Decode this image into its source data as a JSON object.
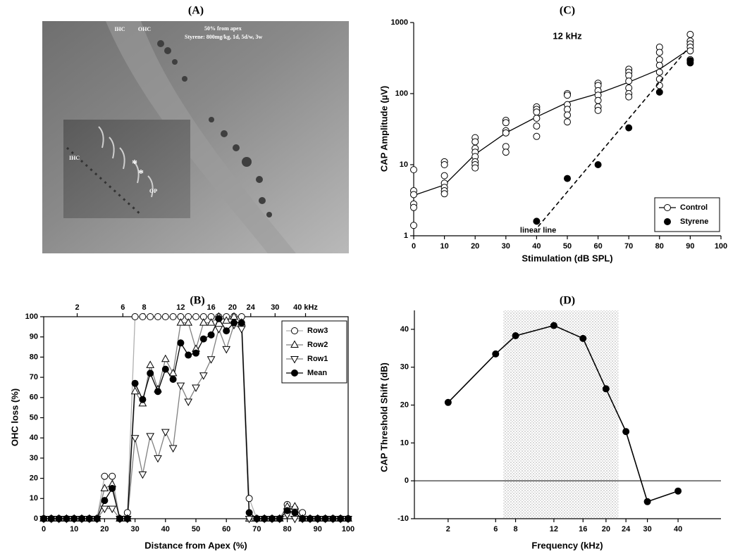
{
  "photo": {
    "title": "(A)",
    "labels": [
      "IHC",
      "OHC",
      "50% from apex",
      "Styrene: 800mg/kg, 1d, 5d/w, 3w",
      "IHC",
      "*",
      "*",
      "OP"
    ]
  },
  "chart_data": [
    {
      "type": "line",
      "title": "(B)",
      "x_label": "Distance from Apex (%)",
      "y_label": "OHC loss (%)",
      "x": [
        0,
        2.5,
        5,
        7.5,
        10,
        12.5,
        15,
        17.5,
        20,
        22.5,
        25,
        27.5,
        30,
        32.5,
        35,
        37.5,
        40,
        42.5,
        45,
        47.5,
        50,
        52.5,
        55,
        57.5,
        60,
        62.5,
        65,
        67.5,
        70,
        72.5,
        75,
        77.5,
        80,
        82.5,
        85,
        87.5,
        90,
        92.5,
        95,
        97.5,
        100
      ],
      "xlim": [
        0,
        100
      ],
      "xticks": [
        0,
        10,
        20,
        30,
        40,
        50,
        60,
        70,
        80,
        90,
        100
      ],
      "x2ticks": [
        {
          "value": 11,
          "label": "2"
        },
        {
          "value": 26,
          "label": "6"
        },
        {
          "value": 33,
          "label": "8"
        },
        {
          "value": 45,
          "label": "12"
        },
        {
          "value": 55,
          "label": "16"
        },
        {
          "value": 62,
          "label": "20"
        },
        {
          "value": 68,
          "label": "24"
        },
        {
          "value": 76,
          "label": "30"
        },
        {
          "value": 86,
          "label": "40 kHz"
        }
      ],
      "ylim": [
        0,
        100
      ],
      "yticks": [
        0,
        10,
        20,
        30,
        40,
        50,
        60,
        70,
        80,
        90,
        100
      ],
      "frame": "box",
      "legend": "upper right",
      "series": [
        {
          "name": "Row3",
          "marker": "open-circle",
          "color": "#b0b0b0",
          "values": [
            0,
            0,
            0,
            0,
            0,
            0,
            0,
            0,
            21,
            21,
            0,
            3,
            100,
            100,
            100,
            100,
            100,
            100,
            100,
            100,
            100,
            100,
            100,
            100,
            100,
            100,
            100,
            10,
            0,
            0,
            0,
            0,
            7,
            5,
            3,
            0,
            0,
            0,
            0,
            0,
            0
          ]
        },
        {
          "name": "Row2",
          "marker": "open-triangle-up",
          "color": "#808080",
          "values": [
            0,
            0,
            0,
            0,
            0,
            0,
            0,
            0,
            15,
            17,
            0,
            0,
            63,
            57,
            76,
            64,
            79,
            72,
            97,
            97,
            84,
            97,
            97,
            100,
            98,
            100,
            97,
            0,
            0,
            0,
            0,
            0,
            6,
            6,
            0,
            0,
            0,
            0,
            0,
            0,
            0
          ]
        },
        {
          "name": "Row1",
          "marker": "open-triangle-down",
          "color": "#808080",
          "values": [
            0,
            0,
            0,
            0,
            0,
            0,
            0,
            0,
            5,
            5,
            0,
            0,
            40,
            22,
            41,
            30,
            43,
            35,
            66,
            58,
            65,
            71,
            79,
            94,
            84,
            96,
            94,
            0,
            0,
            0,
            0,
            0,
            2,
            0,
            0,
            0,
            0,
            0,
            0,
            0,
            0
          ]
        },
        {
          "name": "Mean",
          "marker": "filled-circle",
          "color": "#000000",
          "values": [
            0,
            0,
            0,
            0,
            0,
            0,
            0,
            0,
            9,
            15,
            0,
            0,
            67,
            59,
            72,
            63,
            74,
            69,
            87,
            81,
            82,
            89,
            91,
            99,
            93,
            97,
            97,
            3,
            0,
            0,
            0,
            0,
            4,
            3,
            0,
            0,
            0,
            0,
            0,
            0,
            0
          ]
        }
      ]
    },
    {
      "type": "scatter",
      "title": "(C)",
      "x_label": "Stimulation (dB SPL)",
      "y_label": "CAP Amplitude (µV)",
      "annotation": "12 kHz",
      "log_y": true,
      "xlim": [
        0,
        100
      ],
      "xticks": [
        0,
        10,
        20,
        30,
        40,
        50,
        60,
        70,
        80,
        90,
        100
      ],
      "ylim": [
        1,
        1000
      ],
      "yticks": [
        1,
        10,
        100,
        1000
      ],
      "frame": "axes",
      "legend": "lower right",
      "series": [
        {
          "name": "Control",
          "marker": "open-circle",
          "color": "#000000",
          "x": [
            0,
            0,
            0,
            0,
            0,
            0,
            10,
            10,
            10,
            10,
            10,
            10,
            10,
            20,
            20,
            20,
            20,
            20,
            20,
            20,
            20,
            30,
            30,
            30,
            30,
            30,
            30,
            40,
            40,
            40,
            40,
            40,
            40,
            50,
            50,
            50,
            50,
            50,
            50,
            60,
            60,
            60,
            60,
            60,
            60,
            60,
            70,
            70,
            70,
            70,
            70,
            70,
            70,
            80,
            80,
            80,
            80,
            80,
            80,
            80,
            90,
            90,
            90,
            90,
            90,
            90
          ],
          "values": [
            8.5,
            4.3,
            3.8,
            2.8,
            2.5,
            1.4,
            11,
            10,
            7,
            5.5,
            4.8,
            4.3,
            3.9,
            24,
            21,
            17,
            15,
            13,
            11,
            10,
            9,
            42,
            39,
            30,
            28,
            18,
            15,
            65,
            60,
            55,
            45,
            35,
            25,
            100,
            95,
            70,
            60,
            50,
            40,
            140,
            130,
            110,
            95,
            80,
            65,
            58,
            220,
            200,
            180,
            150,
            120,
            100,
            90,
            450,
            380,
            300,
            250,
            200,
            160,
            130,
            680,
            550,
            500,
            450,
            400,
            300
          ],
          "mean_line": {
            "x": [
              0,
              10,
              20,
              30,
              40,
              50,
              60,
              70,
              80,
              90
            ],
            "values": [
              3.7,
              5.2,
              14,
              28,
              47,
              75,
              100,
              145,
              220,
              430
            ]
          }
        },
        {
          "name": "Styrene",
          "marker": "filled-circle",
          "color": "#000000",
          "x": [
            40,
            50,
            60,
            70,
            80,
            90,
            90
          ],
          "values": [
            1.6,
            6.4,
            10,
            33,
            105,
            270,
            290
          ],
          "fit_line": {
            "label": "linear line",
            "x": [
              40.5,
              89
            ],
            "values": [
              1.35,
              420
            ]
          }
        }
      ]
    },
    {
      "type": "line",
      "title": "(D)",
      "x_label": "Frequency (kHz)",
      "y_label": "CAP Threshold Shift (dB)",
      "xlim": [
        0,
        100
      ],
      "xticks": [
        {
          "value": 11,
          "label": "2"
        },
        {
          "value": 26.5,
          "label": "6"
        },
        {
          "value": 33,
          "label": "8"
        },
        {
          "value": 45.5,
          "label": "12"
        },
        {
          "value": 55,
          "label": "16"
        },
        {
          "value": 62.5,
          "label": "20"
        },
        {
          "value": 69,
          "label": "24"
        },
        {
          "value": 76,
          "label": "30"
        },
        {
          "value": 86,
          "label": "40"
        }
      ],
      "ylim": [
        -10,
        45
      ],
      "yticks": [
        -10,
        0,
        10,
        20,
        30,
        40
      ],
      "frame": "axes",
      "hline": 0,
      "shaded_band": [
        29,
        66.5
      ],
      "marker": "filled-circle",
      "color": "#000000",
      "x": [
        11,
        26.5,
        33,
        45.5,
        55,
        62.5,
        69,
        76,
        86
      ],
      "values": [
        20.7,
        33.5,
        38.3,
        41,
        37.6,
        24.3,
        13,
        -5.5,
        -2.7
      ]
    }
  ]
}
